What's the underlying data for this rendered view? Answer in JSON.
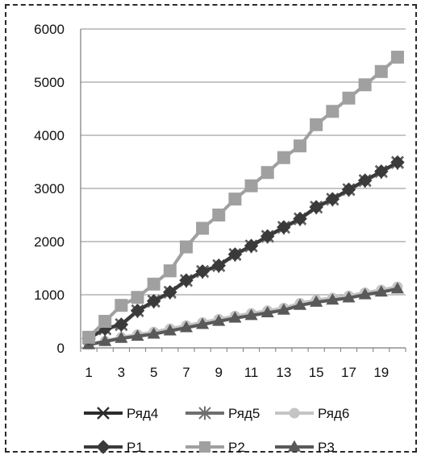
{
  "chart_data": {
    "type": "line",
    "title": "",
    "xlabel": "",
    "ylabel": "",
    "x": [
      1,
      2,
      3,
      4,
      5,
      6,
      7,
      8,
      9,
      10,
      11,
      12,
      13,
      14,
      15,
      16,
      17,
      18,
      19,
      20
    ],
    "x_tick_labels": [
      1,
      3,
      5,
      7,
      9,
      11,
      13,
      15,
      17,
      19
    ],
    "ylim": [
      0,
      6000
    ],
    "y_ticks": [
      0,
      1000,
      2000,
      3000,
      4000,
      5000,
      6000
    ],
    "grid": "horizontal",
    "legend_position": "bottom",
    "series": [
      {
        "name": "Ряд4",
        "color": "#2b2b2b",
        "marker": "x",
        "values": [
          180,
          360,
          440,
          700,
          880,
          1050,
          1270,
          1440,
          1550,
          1760,
          1920,
          2100,
          2270,
          2430,
          2650,
          2800,
          2980,
          3150,
          3320,
          3490
        ]
      },
      {
        "name": "Ряд5",
        "color": "#6e6e6e",
        "marker": "star",
        "values": [
          175,
          350,
          430,
          690,
          870,
          1040,
          1260,
          1430,
          1540,
          1750,
          1910,
          2090,
          2260,
          2420,
          2640,
          2790,
          2970,
          3140,
          3310,
          3480
        ]
      },
      {
        "name": "Ряд6",
        "color": "#c4c4c4",
        "marker": "circle",
        "values": [
          70,
          130,
          200,
          250,
          300,
          360,
          420,
          480,
          540,
          600,
          650,
          700,
          750,
          840,
          900,
          940,
          980,
          1040,
          1090,
          1150
        ]
      },
      {
        "name": "P1",
        "color": "#3a3a3a",
        "marker": "diamond",
        "values": [
          180,
          360,
          440,
          700,
          880,
          1050,
          1270,
          1440,
          1550,
          1760,
          1920,
          2100,
          2270,
          2430,
          2650,
          2800,
          2980,
          3150,
          3320,
          3490
        ]
      },
      {
        "name": "P2",
        "color": "#a0a0a0",
        "marker": "square",
        "values": [
          200,
          500,
          800,
          950,
          1200,
          1450,
          1900,
          2250,
          2500,
          2800,
          3050,
          3300,
          3580,
          3800,
          4200,
          4450,
          4700,
          4950,
          5200,
          5470
        ]
      },
      {
        "name": "P3",
        "color": "#595959",
        "marker": "triangle",
        "values": [
          60,
          120,
          180,
          220,
          260,
          320,
          380,
          440,
          500,
          560,
          610,
          660,
          710,
          800,
          860,
          900,
          940,
          1000,
          1050,
          1110
        ]
      }
    ]
  }
}
